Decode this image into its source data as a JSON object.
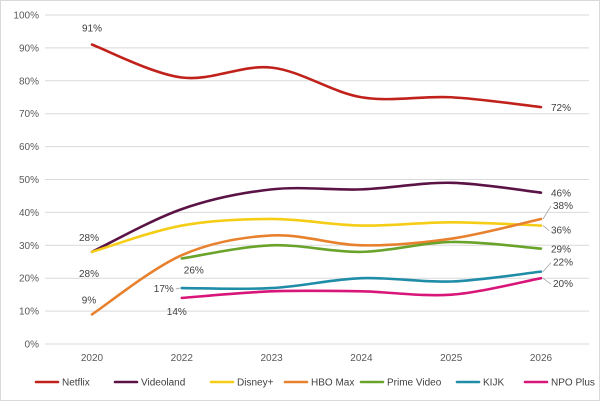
{
  "chart_data": {
    "type": "line",
    "categories": [
      "2020",
      "2022",
      "2023",
      "2024",
      "2025",
      "2026"
    ],
    "y_ticks": [
      "0%",
      "10%",
      "20%",
      "30%",
      "40%",
      "50%",
      "60%",
      "70%",
      "80%",
      "90%",
      "100%"
    ],
    "ylim": [
      0,
      100
    ],
    "grid": true,
    "legend_position": "bottom",
    "series": [
      {
        "name": "Netflix",
        "color": "#c0221b",
        "values": [
          91,
          81,
          84,
          75,
          75,
          72
        ]
      },
      {
        "name": "Videoland",
        "color": "#5b1345",
        "values": [
          28,
          41,
          47,
          47,
          49,
          46
        ]
      },
      {
        "name": "Disney+",
        "color": "#f5cd17",
        "values": [
          28,
          36,
          38,
          36,
          37,
          36
        ]
      },
      {
        "name": "HBO Max",
        "color": "#e8812e",
        "values": [
          9,
          27,
          33,
          30,
          32,
          38
        ]
      },
      {
        "name": "Prime Video",
        "color": "#6aa32b",
        "values": [
          null,
          26,
          30,
          28,
          31,
          29
        ]
      },
      {
        "name": "KIJK",
        "color": "#1f8ca8",
        "values": [
          null,
          17,
          17,
          20,
          19,
          22
        ]
      },
      {
        "name": "NPO Plus",
        "color": "#d8167a",
        "values": [
          null,
          14,
          16,
          16,
          15,
          20
        ]
      }
    ],
    "data_labels": [
      {
        "series": 0,
        "index": 0,
        "text": "91%"
      },
      {
        "series": 0,
        "index": 5,
        "text": "72%"
      },
      {
        "series": 1,
        "index": 0,
        "text": "28%"
      },
      {
        "series": 1,
        "index": 5,
        "text": "46%"
      },
      {
        "series": 2,
        "index": 0,
        "text": "28%"
      },
      {
        "series": 2,
        "index": 5,
        "text": "36%"
      },
      {
        "series": 3,
        "index": 0,
        "text": "9%"
      },
      {
        "series": 3,
        "index": 5,
        "text": "38%"
      },
      {
        "series": 4,
        "index": 1,
        "text": "26%"
      },
      {
        "series": 4,
        "index": 5,
        "text": "29%"
      },
      {
        "series": 5,
        "index": 1,
        "text": "17%"
      },
      {
        "series": 5,
        "index": 5,
        "text": "22%"
      },
      {
        "series": 6,
        "index": 1,
        "text": "14%"
      },
      {
        "series": 6,
        "index": 5,
        "text": "20%"
      }
    ]
  }
}
